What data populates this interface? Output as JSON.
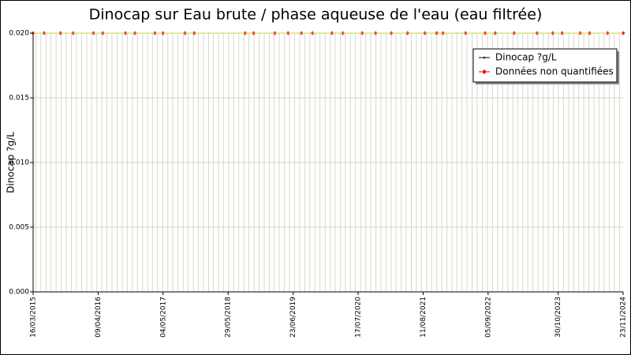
{
  "chart_data": {
    "type": "scatter",
    "title": "Dinocap sur Eau brute / phase aqueuse de l'eau (eau filtrée)",
    "y_label": "Dinocap ?g/L",
    "xlim": [
      "2015-03-16",
      "2024-11-23"
    ],
    "xticks": [
      {
        "value": "2015-03-16",
        "label": "16/03/2015"
      },
      {
        "value": "2016-04-09",
        "label": "09/04/2016"
      },
      {
        "value": "2017-05-04",
        "label": "04/05/2017"
      },
      {
        "value": "2018-05-29",
        "label": "29/05/2018"
      },
      {
        "value": "2019-06-23",
        "label": "23/06/2019"
      },
      {
        "value": "2020-07-17",
        "label": "17/07/2020"
      },
      {
        "value": "2021-08-11",
        "label": "11/08/2021"
      },
      {
        "value": "2022-09-05",
        "label": "05/09/2022"
      },
      {
        "value": "2023-10-30",
        "label": "30/10/2023"
      },
      {
        "value": "2024-11-23",
        "label": "23/11/2024"
      }
    ],
    "ylim": [
      0,
      0.02
    ],
    "yticks": [
      {
        "value": 0,
        "label": "0.000"
      },
      {
        "value": 0.005,
        "label": "0.005"
      },
      {
        "value": 0.01,
        "label": "0.010"
      },
      {
        "value": 0.015,
        "label": "0.015"
      },
      {
        "value": 0.02,
        "label": "0.020"
      }
    ],
    "grid": true,
    "legend": "upper right",
    "series": [
      {
        "name": "Dinocap ?g/L",
        "color": "#000000",
        "x": [],
        "values": []
      },
      {
        "name": "Données non quantifiées",
        "color": "#ff0000",
        "x": [
          "2015-03-16",
          "2015-05-21",
          "2015-08-27",
          "2015-11-11",
          "2016-03-12",
          "2016-05-07",
          "2016-09-20",
          "2016-11-16",
          "2017-03-16",
          "2017-05-03",
          "2017-09-12",
          "2017-11-07",
          "2018-09-08",
          "2018-10-29",
          "2019-03-05",
          "2019-05-24",
          "2019-08-12",
          "2019-10-17",
          "2020-02-11",
          "2020-04-16",
          "2020-08-11",
          "2020-10-30",
          "2021-02-01",
          "2021-05-10",
          "2021-08-22",
          "2021-10-31",
          "2021-12-08",
          "2022-04-23",
          "2022-08-18",
          "2022-10-18",
          "2023-02-08",
          "2023-06-26",
          "2023-09-28",
          "2023-11-23",
          "2024-03-11",
          "2024-05-06",
          "2024-08-22",
          "2024-11-23"
        ],
        "values": [
          0.02,
          0.02,
          0.02,
          0.02,
          0.02,
          0.02,
          0.02,
          0.02,
          0.02,
          0.02,
          0.02,
          0.02,
          0.02,
          0.02,
          0.02,
          0.02,
          0.02,
          0.02,
          0.02,
          0.02,
          0.02,
          0.02,
          0.02,
          0.02,
          0.02,
          0.02,
          0.02,
          0.02,
          0.02,
          0.02,
          0.02,
          0.02,
          0.02,
          0.02,
          0.02,
          0.02,
          0.02,
          0.02
        ]
      }
    ]
  }
}
